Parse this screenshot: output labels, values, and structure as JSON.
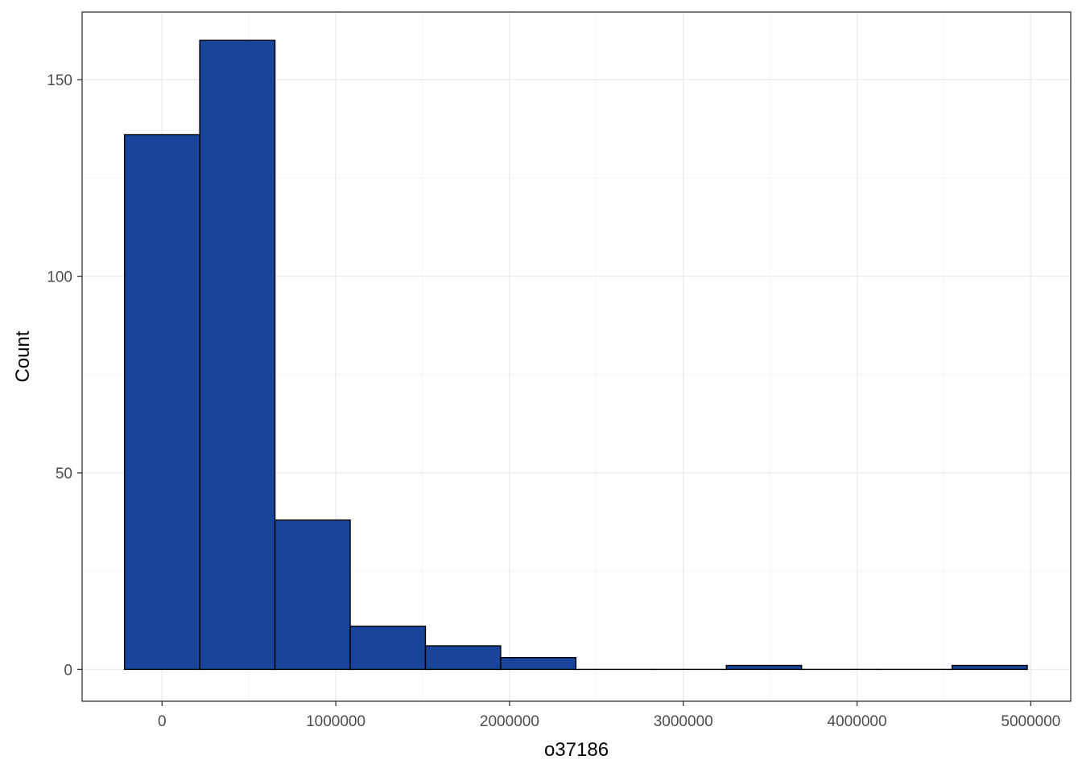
{
  "chart_data": {
    "type": "bar",
    "subtype": "histogram",
    "xlabel": "o37186",
    "ylabel": "Count",
    "bins": [
      {
        "x0": -216000,
        "x1": 217000,
        "count": 136
      },
      {
        "x0": 217000,
        "x1": 650000,
        "count": 160
      },
      {
        "x0": 650000,
        "x1": 1083000,
        "count": 38
      },
      {
        "x0": 1083000,
        "x1": 1516000,
        "count": 11
      },
      {
        "x0": 1516000,
        "x1": 1949000,
        "count": 6
      },
      {
        "x0": 1949000,
        "x1": 2382000,
        "count": 3
      },
      {
        "x0": 2382000,
        "x1": 2815000,
        "count": 0
      },
      {
        "x0": 2815000,
        "x1": 3248000,
        "count": 0
      },
      {
        "x0": 3248000,
        "x1": 3681000,
        "count": 1
      },
      {
        "x0": 3681000,
        "x1": 4114000,
        "count": 0
      },
      {
        "x0": 4114000,
        "x1": 4547000,
        "count": 0
      },
      {
        "x0": 4547000,
        "x1": 4980000,
        "count": 1
      }
    ],
    "xlim": [
      -460000,
      5230000
    ],
    "ylim": [
      -8.1,
      167.2
    ],
    "x_ticks": [
      0,
      1000000,
      2000000,
      3000000,
      4000000,
      5000000
    ],
    "x_tick_labels": [
      "0",
      "1000000",
      "2000000",
      "3000000",
      "4000000",
      "5000000"
    ],
    "y_ticks": [
      0,
      50,
      100,
      150
    ],
    "y_tick_labels": [
      "0",
      "50",
      "100",
      "150"
    ],
    "grid": true,
    "colors": {
      "bar_fill": "#184499",
      "bar_stroke": "#000000",
      "grid_major": "#ebebeb",
      "grid_minor": "#f5f5f5",
      "panel_border": "#333333"
    }
  }
}
